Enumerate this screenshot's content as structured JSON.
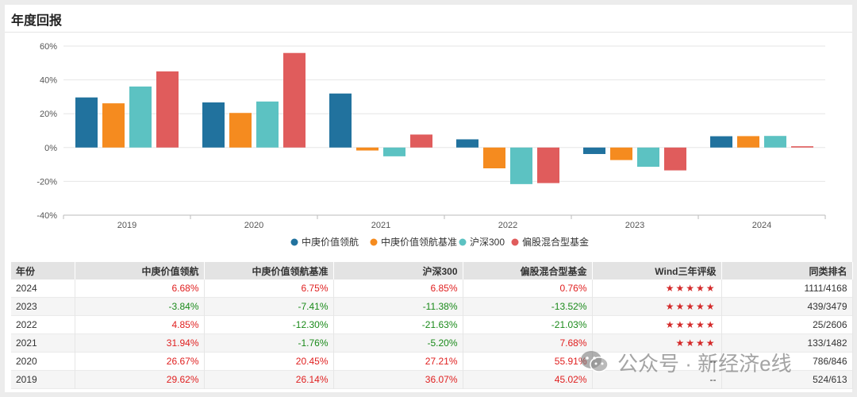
{
  "title": "年度回报",
  "chart_data": {
    "type": "bar",
    "categories": [
      "2019",
      "2020",
      "2021",
      "2022",
      "2023",
      "2024"
    ],
    "series": [
      {
        "name": "中庚价值领航",
        "color": "#21729e",
        "values": [
          29.62,
          26.67,
          31.94,
          4.85,
          -3.84,
          6.68
        ]
      },
      {
        "name": "中庚价值领航基准",
        "color": "#f58b1f",
        "values": [
          26.14,
          20.45,
          -1.76,
          -12.3,
          -7.41,
          6.75
        ]
      },
      {
        "name": "沪深300",
        "color": "#5cc2c2",
        "values": [
          36.07,
          27.21,
          -5.2,
          -21.63,
          -11.38,
          6.85
        ]
      },
      {
        "name": "偏股混合型基金",
        "color": "#e05c5c",
        "values": [
          45.02,
          55.91,
          7.68,
          -21.03,
          -13.52,
          0.76
        ]
      }
    ],
    "ylim": [
      -40,
      60
    ],
    "yticks": [
      -40,
      -20,
      0,
      20,
      40,
      60
    ],
    "ytick_labels": [
      "-40%",
      "-20%",
      "0%",
      "20%",
      "40%",
      "60%"
    ],
    "grid": true,
    "legend_position": "bottom"
  },
  "table": {
    "headers": [
      "年份",
      "中庚价值领航",
      "中庚价值领航基准",
      "沪深300",
      "偏股混合型基金",
      "Wind三年评级",
      "同类排名"
    ],
    "rows": [
      {
        "year": "2024",
        "fund": "6.68%",
        "bench": "6.75%",
        "hs300": "6.85%",
        "avg": "0.76%",
        "rating": "★★★★★",
        "rank": "1111/4168"
      },
      {
        "year": "2023",
        "fund": "-3.84%",
        "bench": "-7.41%",
        "hs300": "-11.38%",
        "avg": "-13.52%",
        "rating": "★★★★★",
        "rank": "439/3479"
      },
      {
        "year": "2022",
        "fund": "4.85%",
        "bench": "-12.30%",
        "hs300": "-21.63%",
        "avg": "-21.03%",
        "rating": "★★★★★",
        "rank": "25/2606"
      },
      {
        "year": "2021",
        "fund": "31.94%",
        "bench": "-1.76%",
        "hs300": "-5.20%",
        "avg": "7.68%",
        "rating": "★★★★",
        "rank": "133/1482"
      },
      {
        "year": "2020",
        "fund": "26.67%",
        "bench": "20.45%",
        "hs300": "27.21%",
        "avg": "55.91%",
        "rating": "--",
        "rank": "786/846"
      },
      {
        "year": "2019",
        "fund": "29.62%",
        "bench": "26.14%",
        "hs300": "36.07%",
        "avg": "45.02%",
        "rating": "--",
        "rank": "524/613"
      }
    ]
  },
  "watermark": {
    "text": "公众号 · 新经济e线"
  },
  "colors": {
    "positive": "#e02020",
    "negative": "#1a8a1a",
    "star": "#d42a2a"
  }
}
